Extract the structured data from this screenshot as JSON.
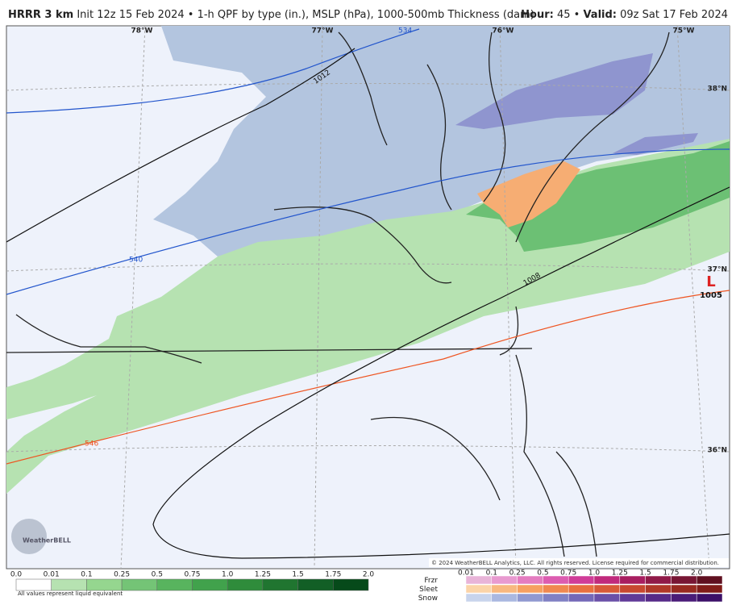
{
  "header": {
    "model": "HRRR 3 km",
    "description": "Init 12z 15 Feb 2024 • 1-h QPF by type (in.), MSLP (hPa), 1000-500mb Thickness (dam)",
    "hour_label": "Hour:",
    "hour": "45 •",
    "valid_label": "Valid:",
    "valid": "09z Sat 17 Feb 2024"
  },
  "map": {
    "longitudes": [
      "78°W",
      "77°W",
      "76°W",
      "75°W"
    ],
    "latitudes": [
      "38°N",
      "37°N",
      "36°N"
    ],
    "thickness_labels": [
      "534",
      "540",
      "546"
    ],
    "isobar_labels": [
      "1012",
      "1008"
    ],
    "low": {
      "symbol": "L",
      "pressure": "1005"
    },
    "logo": "WeatherBELL",
    "copyright": "© 2024 WeatherBELL Analytics, LLC. All rights reserved. License required for commercial distribution."
  },
  "rain_legend": {
    "labels": [
      "0.0",
      "0.01",
      "0.1",
      "0.25",
      "0.5",
      "0.75",
      "1.0",
      "1.25",
      "1.5",
      "1.75",
      "2.0"
    ],
    "note": "All values represent liquid equivalent"
  },
  "mixed_legend": {
    "types": [
      "Frzr",
      "Sleet",
      "Snow"
    ],
    "labels": [
      "0.01",
      "0.1",
      "0.25",
      "0.5",
      "0.75",
      "1.0",
      "1.25",
      "1.5",
      "1.75",
      "2.0"
    ]
  }
}
